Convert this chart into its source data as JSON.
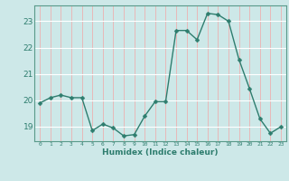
{
  "x": [
    0,
    1,
    2,
    3,
    4,
    5,
    6,
    7,
    8,
    9,
    10,
    11,
    12,
    13,
    14,
    15,
    16,
    17,
    18,
    19,
    20,
    21,
    22,
    23
  ],
  "y": [
    19.9,
    20.1,
    20.2,
    20.1,
    20.1,
    18.85,
    19.1,
    18.95,
    18.65,
    18.7,
    19.4,
    19.95,
    19.95,
    22.65,
    22.65,
    22.3,
    23.3,
    23.25,
    23.0,
    21.55,
    20.45,
    19.3,
    18.75,
    19.0
  ],
  "xlabel": "Humidex (Indice chaleur)",
  "xlim": [
    -0.5,
    23.5
  ],
  "ylim": [
    18.45,
    23.6
  ],
  "yticks": [
    19,
    20,
    21,
    22,
    23
  ],
  "xticks": [
    0,
    1,
    2,
    3,
    4,
    5,
    6,
    7,
    8,
    9,
    10,
    11,
    12,
    13,
    14,
    15,
    16,
    17,
    18,
    19,
    20,
    21,
    22,
    23
  ],
  "line_color": "#2e7d6e",
  "marker_color": "#2e7d6e",
  "bg_color": "#cde8e8",
  "grid_h_color": "#ffffff",
  "grid_v_color": "#e8b8b8",
  "tick_color": "#2e7d6e",
  "xlabel_color": "#2e7d6e",
  "line_width": 1.0,
  "marker_size": 2.5
}
